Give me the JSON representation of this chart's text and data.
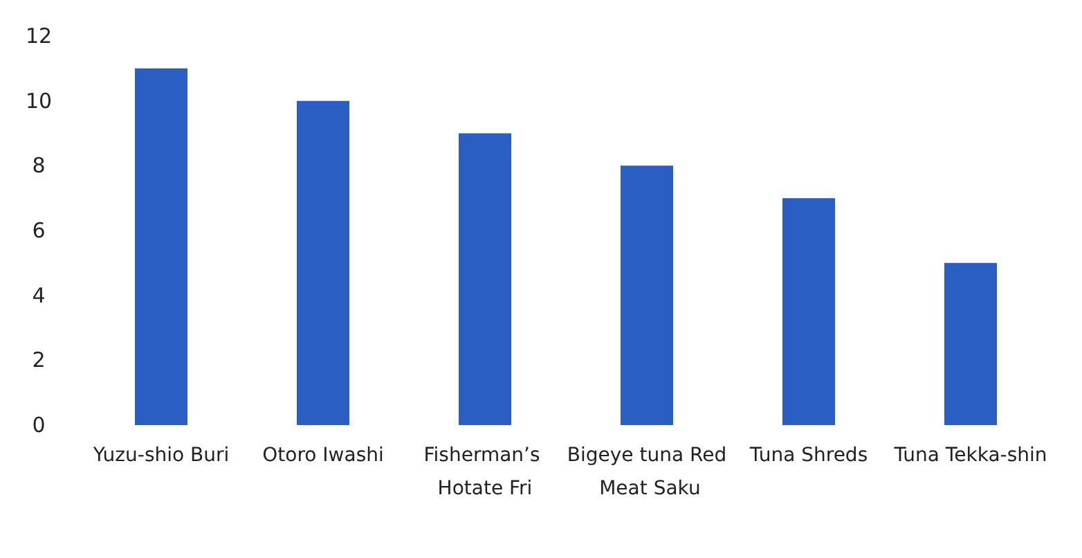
{
  "chart_data": {
    "type": "bar",
    "categories": [
      "Yuzu-shio Buri",
      "Otoro Iwashi",
      "Fisherman’s Hotate Fri",
      "Bigeye tuna Red Meat Saku",
      "Tuna Shreds",
      "Tuna Tekka-shin"
    ],
    "values": [
      11,
      10,
      9,
      8,
      7,
      5
    ],
    "color": "#2a5ec2",
    "ylim": [
      0,
      12
    ],
    "yticks": [
      0,
      2,
      4,
      6,
      8,
      10,
      12
    ],
    "grid": false
  }
}
